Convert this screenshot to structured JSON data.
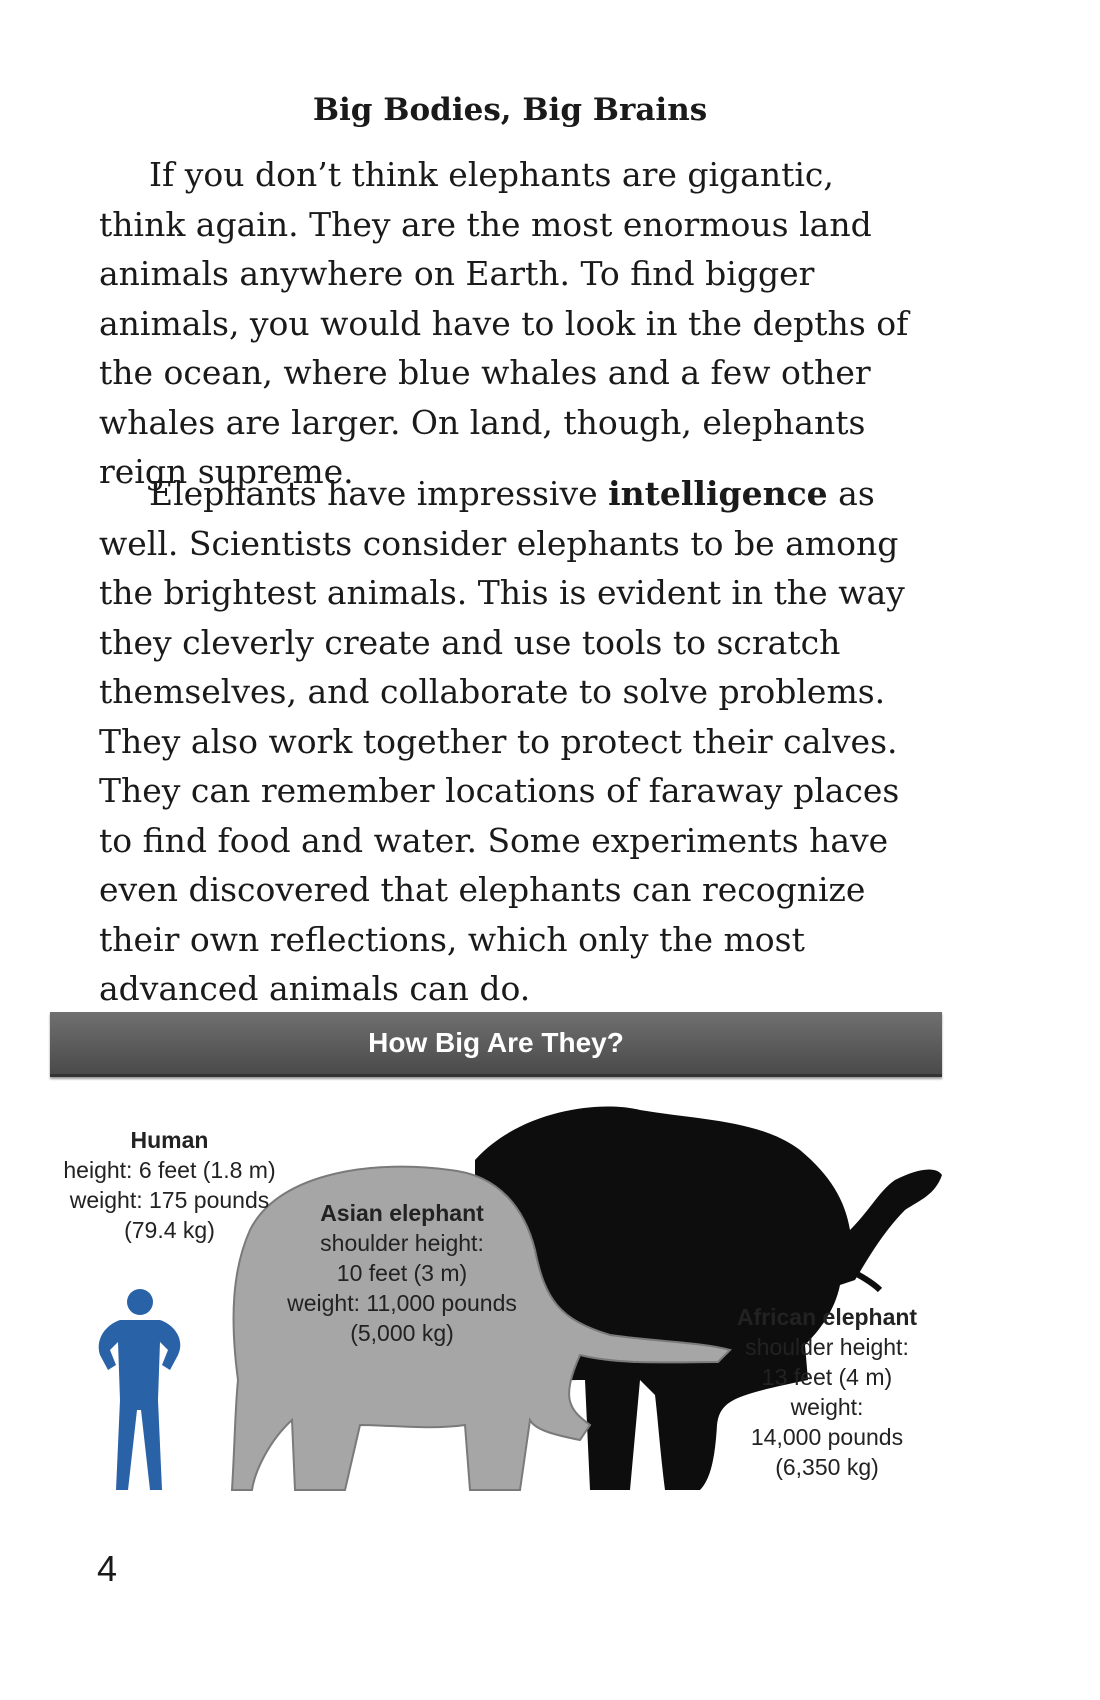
{
  "heading": "Big Bodies, Big Brains",
  "p1": "If you don’t think elephants are gigantic, think again. They are the most enormous land animals anywhere on Earth. To find bigger animals, you would have to look in the depths of the ocean, where blue whales and a few other whales are larger. On land, though, elephants reign supreme.",
  "p2_a": "Elephants have impressive ",
  "p2_term": "intelligence",
  "p2_b": " as well. Scientists consider elephants to be among the brightest animals. This is evident in the way they cleverly create and use tools to scratch themselves, and collaborate to solve problems. They also work together to protect their calves. They can remember locations of faraway places to find food and water. Some experiments have even discovered that elephants can recognize their own reflections, which only the most advanced animals can do.",
  "banner": "How Big Are They?",
  "human": {
    "name": "Human",
    "l1": "height: 6 feet (1.8 m)",
    "l2": "weight: 175 pounds",
    "l3": "(79.4 kg)"
  },
  "asian": {
    "name": "Asian elephant",
    "l1": "shoulder height:",
    "l2": "10 feet (3 m)",
    "l3": "weight:  11,000 pounds",
    "l4": "(5,000 kg)"
  },
  "african": {
    "name": "African elephant",
    "l1": "shoulder height:",
    "l2": "13 feet (4 m)",
    "l3": "weight:",
    "l4": "14,000 pounds",
    "l5": "(6,350 kg)"
  },
  "colors": {
    "human": "#2a62a8",
    "asian": "#a6a6a6",
    "african": "#0d0d0d"
  },
  "page_number": "4"
}
